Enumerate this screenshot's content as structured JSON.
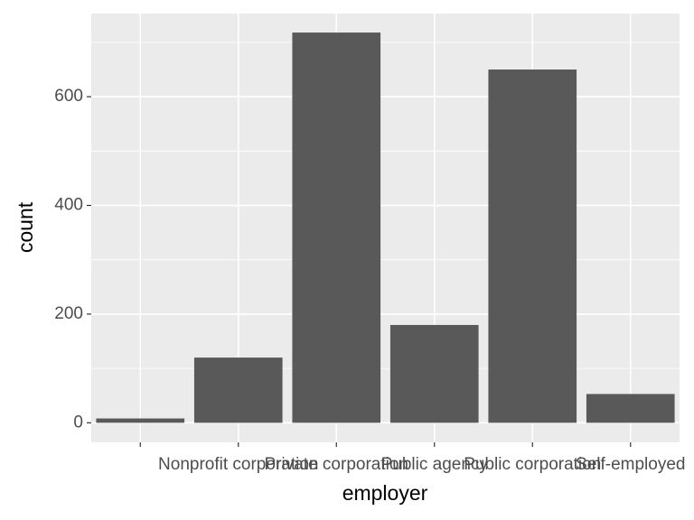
{
  "chart_data": {
    "type": "bar",
    "categories": [
      null,
      "Nonprofit corporation",
      "Private corporation",
      "Public agency",
      "Public corporation",
      "Self-employed"
    ],
    "values": [
      8,
      120,
      718,
      180,
      650,
      53
    ],
    "color": "#595959",
    "xlabel": "employer",
    "ylabel": "count",
    "ylim": [
      -36,
      753
    ],
    "yticks": [
      0,
      200,
      400,
      600
    ],
    "y_minor_ticks": [
      100,
      300,
      500,
      700
    ],
    "grid": true
  }
}
